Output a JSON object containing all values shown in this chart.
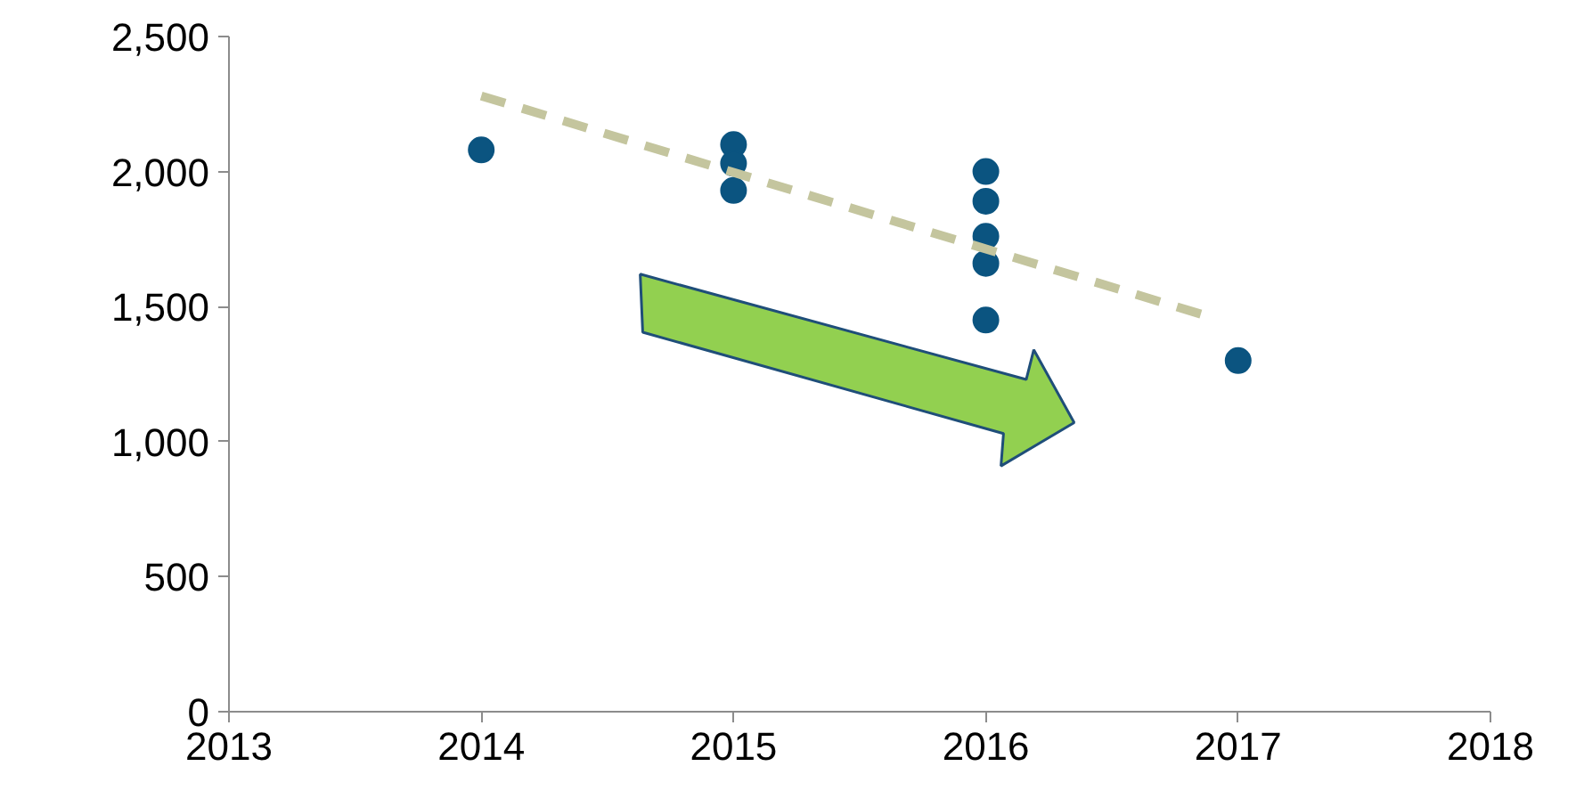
{
  "chart_data": {
    "type": "scatter",
    "xlim": [
      2013,
      2018
    ],
    "xticks": [
      2013,
      2014,
      2015,
      2016,
      2017,
      2018
    ],
    "ylim": [
      0,
      2500
    ],
    "yticks": [
      {
        "value": 0,
        "label": "0"
      },
      {
        "value": 500,
        "label": "500"
      },
      {
        "value": 1000,
        "label": "1,000"
      },
      {
        "value": 1500,
        "label": "1,500"
      },
      {
        "value": 2000,
        "label": "2,000"
      },
      {
        "value": 2500,
        "label": "2,500"
      }
    ],
    "grid": false,
    "series": [
      {
        "marker": "circle",
        "color": "#0b5480",
        "x": [
          2014,
          2015,
          2015,
          2015,
          2016,
          2016,
          2016,
          2016,
          2016,
          2017
        ],
        "values": [
          2080,
          2100,
          2030,
          1930,
          2000,
          1890,
          1760,
          1660,
          1450,
          1300
        ]
      },
      {
        "type": "line",
        "line_style": "dashed",
        "color": "#c4c59e",
        "x": [
          2014,
          2016.86
        ],
        "values": [
          2280,
          1470
        ]
      }
    ]
  }
}
